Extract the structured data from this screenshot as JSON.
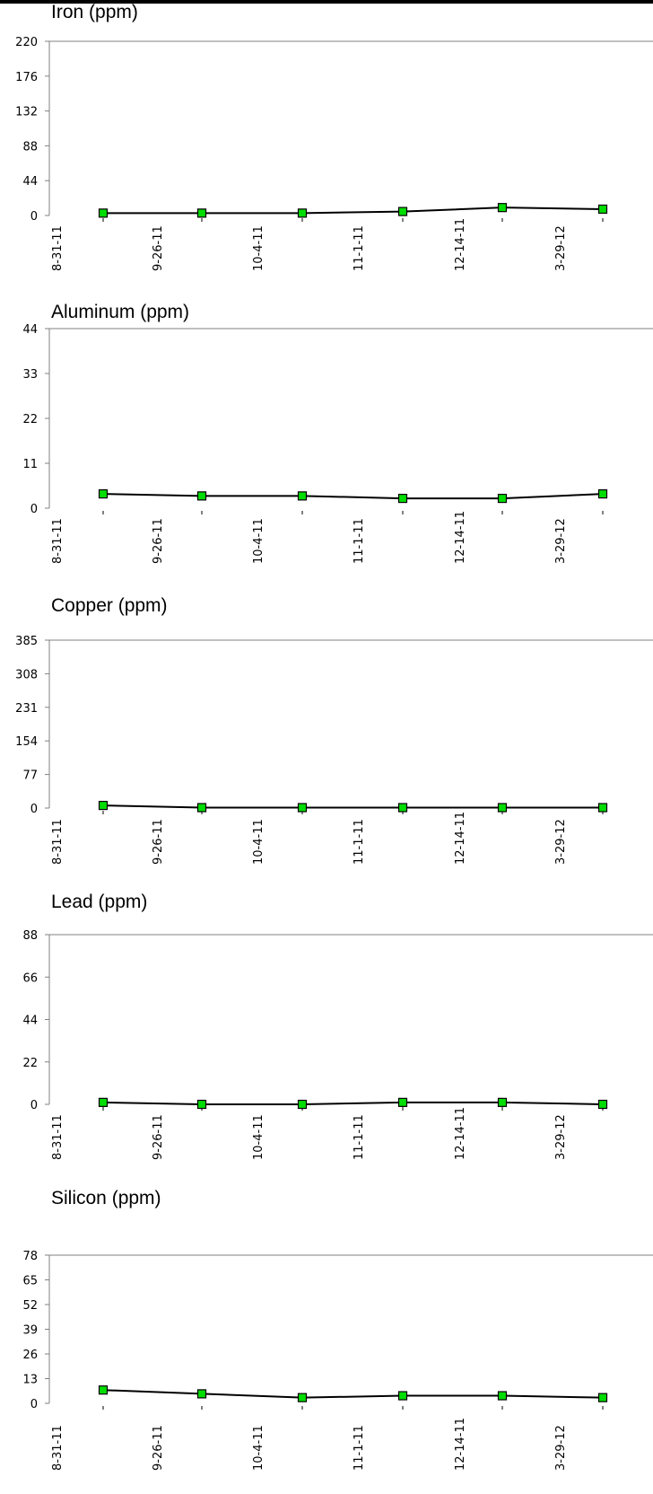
{
  "chart_data": [
    {
      "type": "line",
      "title": "Iron (ppm)",
      "categories": [
        "8-31-11",
        "9-26-11",
        "10-4-11",
        "11-1-11",
        "12-14-11",
        "3-29-12"
      ],
      "ylim": [
        0,
        220
      ],
      "yticks": [
        "0",
        "44",
        "88",
        "132",
        "176",
        "220"
      ],
      "values": [
        3,
        3,
        3,
        5,
        10,
        8
      ],
      "grid": false,
      "line_color": "#000000",
      "marker_color": "#00dd00"
    },
    {
      "type": "line",
      "title": "Aluminum (ppm)",
      "categories": [
        "8-31-11",
        "9-26-11",
        "10-4-11",
        "11-1-11",
        "12-14-11",
        "3-29-12"
      ],
      "ylim": [
        0,
        44
      ],
      "yticks": [
        "0",
        "11",
        "22",
        "33",
        "44"
      ],
      "values": [
        3.5,
        3,
        3,
        2.4,
        2.4,
        3.5
      ],
      "grid": false,
      "line_color": "#000000",
      "marker_color": "#00dd00"
    },
    {
      "type": "line",
      "title": "Copper (ppm)",
      "categories": [
        "8-31-11",
        "9-26-11",
        "10-4-11",
        "11-1-11",
        "12-14-11",
        "3-29-12"
      ],
      "ylim": [
        0,
        385
      ],
      "yticks": [
        "0",
        "77",
        "154",
        "231",
        "308",
        "385"
      ],
      "values": [
        6,
        1,
        1,
        1,
        1,
        1
      ],
      "grid": false,
      "line_color": "#000000",
      "marker_color": "#00dd00"
    },
    {
      "type": "line",
      "title": "Lead (ppm)",
      "categories": [
        "8-31-11",
        "9-26-11",
        "10-4-11",
        "11-1-11",
        "12-14-11",
        "3-29-12"
      ],
      "ylim": [
        0,
        88
      ],
      "yticks": [
        "0",
        "22",
        "44",
        "66",
        "88"
      ],
      "values": [
        1,
        0,
        0,
        1,
        1,
        0
      ],
      "grid": false,
      "line_color": "#000000",
      "marker_color": "#00dd00"
    },
    {
      "type": "line",
      "title": "Silicon (ppm)",
      "categories": [
        "8-31-11",
        "9-26-11",
        "10-4-11",
        "11-1-11",
        "12-14-11",
        "3-29-12"
      ],
      "ylim": [
        0,
        78
      ],
      "yticks": [
        "0",
        "13",
        "26",
        "39",
        "52",
        "65",
        "78"
      ],
      "values": [
        7,
        5,
        3,
        4,
        4,
        3
      ],
      "grid": false,
      "line_color": "#000000",
      "marker_color": "#00dd00"
    }
  ]
}
